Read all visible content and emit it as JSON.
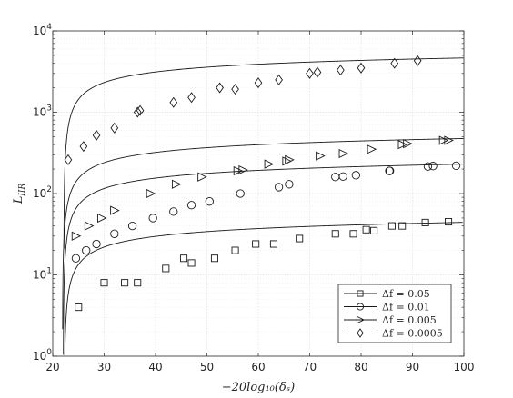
{
  "chart_data": {
    "type": "scatter",
    "xlabel": "−20log₁₀(δₛ)",
    "ylabel": "L_IIR",
    "xlim": [
      20,
      100
    ],
    "ylim": [
      1,
      10000
    ],
    "yscale": "log",
    "grid": true,
    "legend_position": "bottom-right",
    "x_ticks": [
      "20",
      "30",
      "40",
      "50",
      "60",
      "70",
      "80",
      "90",
      "100"
    ],
    "y_ticks": [
      {
        "base": "10",
        "exp": "0",
        "value": 1
      },
      {
        "base": "10",
        "exp": "1",
        "value": 10
      },
      {
        "base": "10",
        "exp": "2",
        "value": 100
      },
      {
        "base": "10",
        "exp": "3",
        "value": 1000
      },
      {
        "base": "10",
        "exp": "4",
        "value": 10000
      }
    ],
    "series": [
      {
        "name": "Δf = 0.05",
        "marker": "square",
        "points": [
          [
            25,
            4
          ],
          [
            30,
            8
          ],
          [
            34,
            8
          ],
          [
            36.5,
            8
          ],
          [
            42,
            12
          ],
          [
            45.5,
            16
          ],
          [
            47,
            14
          ],
          [
            51.5,
            16
          ],
          [
            55.5,
            20
          ],
          [
            59.5,
            24
          ],
          [
            63,
            24
          ],
          [
            68,
            28
          ],
          [
            75,
            32
          ],
          [
            78.5,
            32
          ],
          [
            81,
            36
          ],
          [
            82.5,
            35
          ],
          [
            86,
            40
          ],
          [
            88,
            40
          ],
          [
            92.5,
            44
          ],
          [
            97,
            45
          ]
        ],
        "fit": {
          "a": 44.3,
          "x0": 21.25
        }
      },
      {
        "name": "Δf = 0.01",
        "marker": "circle",
        "points": [
          [
            24.5,
            16
          ],
          [
            26.5,
            20
          ],
          [
            28.5,
            24
          ],
          [
            32,
            32
          ],
          [
            35.5,
            40
          ],
          [
            39.5,
            50
          ],
          [
            43.5,
            60
          ],
          [
            47,
            72
          ],
          [
            50.5,
            80
          ],
          [
            56.5,
            100
          ],
          [
            64,
            120
          ],
          [
            66,
            130
          ],
          [
            75,
            160
          ],
          [
            76.5,
            162
          ],
          [
            79,
            168
          ],
          [
            85.5,
            190
          ],
          [
            85.6,
            190
          ],
          [
            93,
            215
          ],
          [
            94,
            218
          ],
          [
            98.5,
            220
          ]
        ],
        "fit": {
          "a": 230,
          "x0": 21.05
        }
      },
      {
        "name": "Δf = 0.005",
        "marker": "triangle-right",
        "points": [
          [
            24.5,
            30
          ],
          [
            27,
            40
          ],
          [
            29.5,
            50
          ],
          [
            32,
            62
          ],
          [
            39,
            100
          ],
          [
            44,
            130
          ],
          [
            49,
            160
          ],
          [
            56,
            190
          ],
          [
            57,
            195
          ],
          [
            62,
            230
          ],
          [
            65.5,
            250
          ],
          [
            66,
            260
          ],
          [
            72,
            290
          ],
          [
            76.5,
            310
          ],
          [
            82,
            350
          ],
          [
            88,
            400
          ],
          [
            89,
            410
          ],
          [
            96,
            450
          ],
          [
            97,
            450
          ]
        ],
        "fit": {
          "a": 475,
          "x0": 20.9
        }
      },
      {
        "name": "Δf = 0.0005",
        "marker": "diamond",
        "points": [
          [
            23,
            260
          ],
          [
            26,
            380
          ],
          [
            28.5,
            520
          ],
          [
            32,
            640
          ],
          [
            36.5,
            1000
          ],
          [
            37,
            1050
          ],
          [
            43.5,
            1320
          ],
          [
            47,
            1520
          ],
          [
            52.5,
            2000
          ],
          [
            55.5,
            1920
          ],
          [
            60,
            2300
          ],
          [
            64,
            2500
          ],
          [
            70,
            3000
          ],
          [
            71.5,
            3100
          ],
          [
            76,
            3300
          ],
          [
            80,
            3500
          ],
          [
            86.5,
            4000
          ],
          [
            91,
            4300
          ]
        ],
        "fit": {
          "a": 4650,
          "x0": 21.15
        }
      }
    ]
  }
}
